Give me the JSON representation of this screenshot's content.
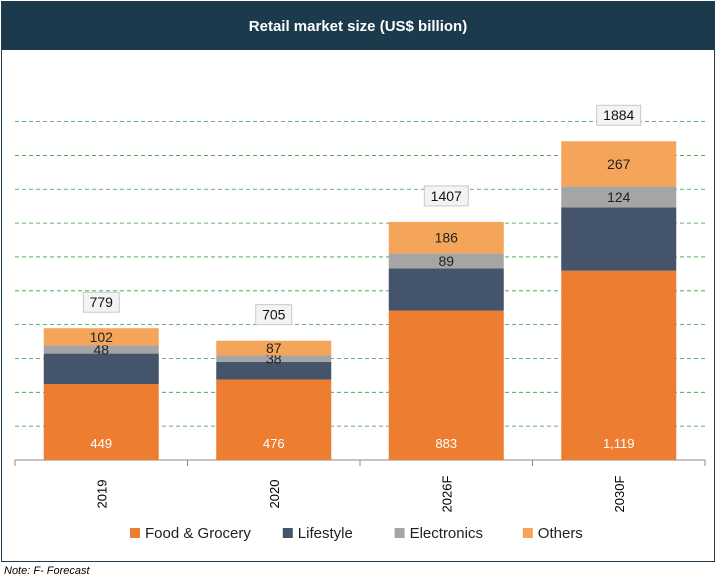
{
  "chart_data": {
    "type": "bar",
    "stacked": true,
    "title": "Retail market size (US$ billion)",
    "categories": [
      "2019",
      "2020",
      "2026F",
      "2030F"
    ],
    "series": [
      {
        "name": "Food & Grocery",
        "color": "#ed7d31",
        "values": [
          449,
          476,
          883,
          1119
        ],
        "labels": [
          "449",
          "476",
          "883",
          "1,119"
        ]
      },
      {
        "name": "Lifestyle",
        "color": "#44546a",
        "values": [
          180,
          104,
          249,
          374
        ],
        "labels": []
      },
      {
        "name": "Electronics",
        "color": "#a5a5a5",
        "values": [
          48,
          38,
          89,
          124
        ],
        "labels": [
          "48",
          "38",
          "89",
          "124"
        ]
      },
      {
        "name": "Others",
        "color": "#f4a55a",
        "values": [
          102,
          87,
          186,
          267
        ],
        "labels": [
          "102",
          "87",
          "186",
          "267"
        ]
      }
    ],
    "totals": [
      "779",
      "705",
      "1407",
      "1884"
    ],
    "ylim": [
      0,
      2000
    ],
    "grid": true,
    "legend": "bottom"
  },
  "note": "Note: F- Forecast"
}
